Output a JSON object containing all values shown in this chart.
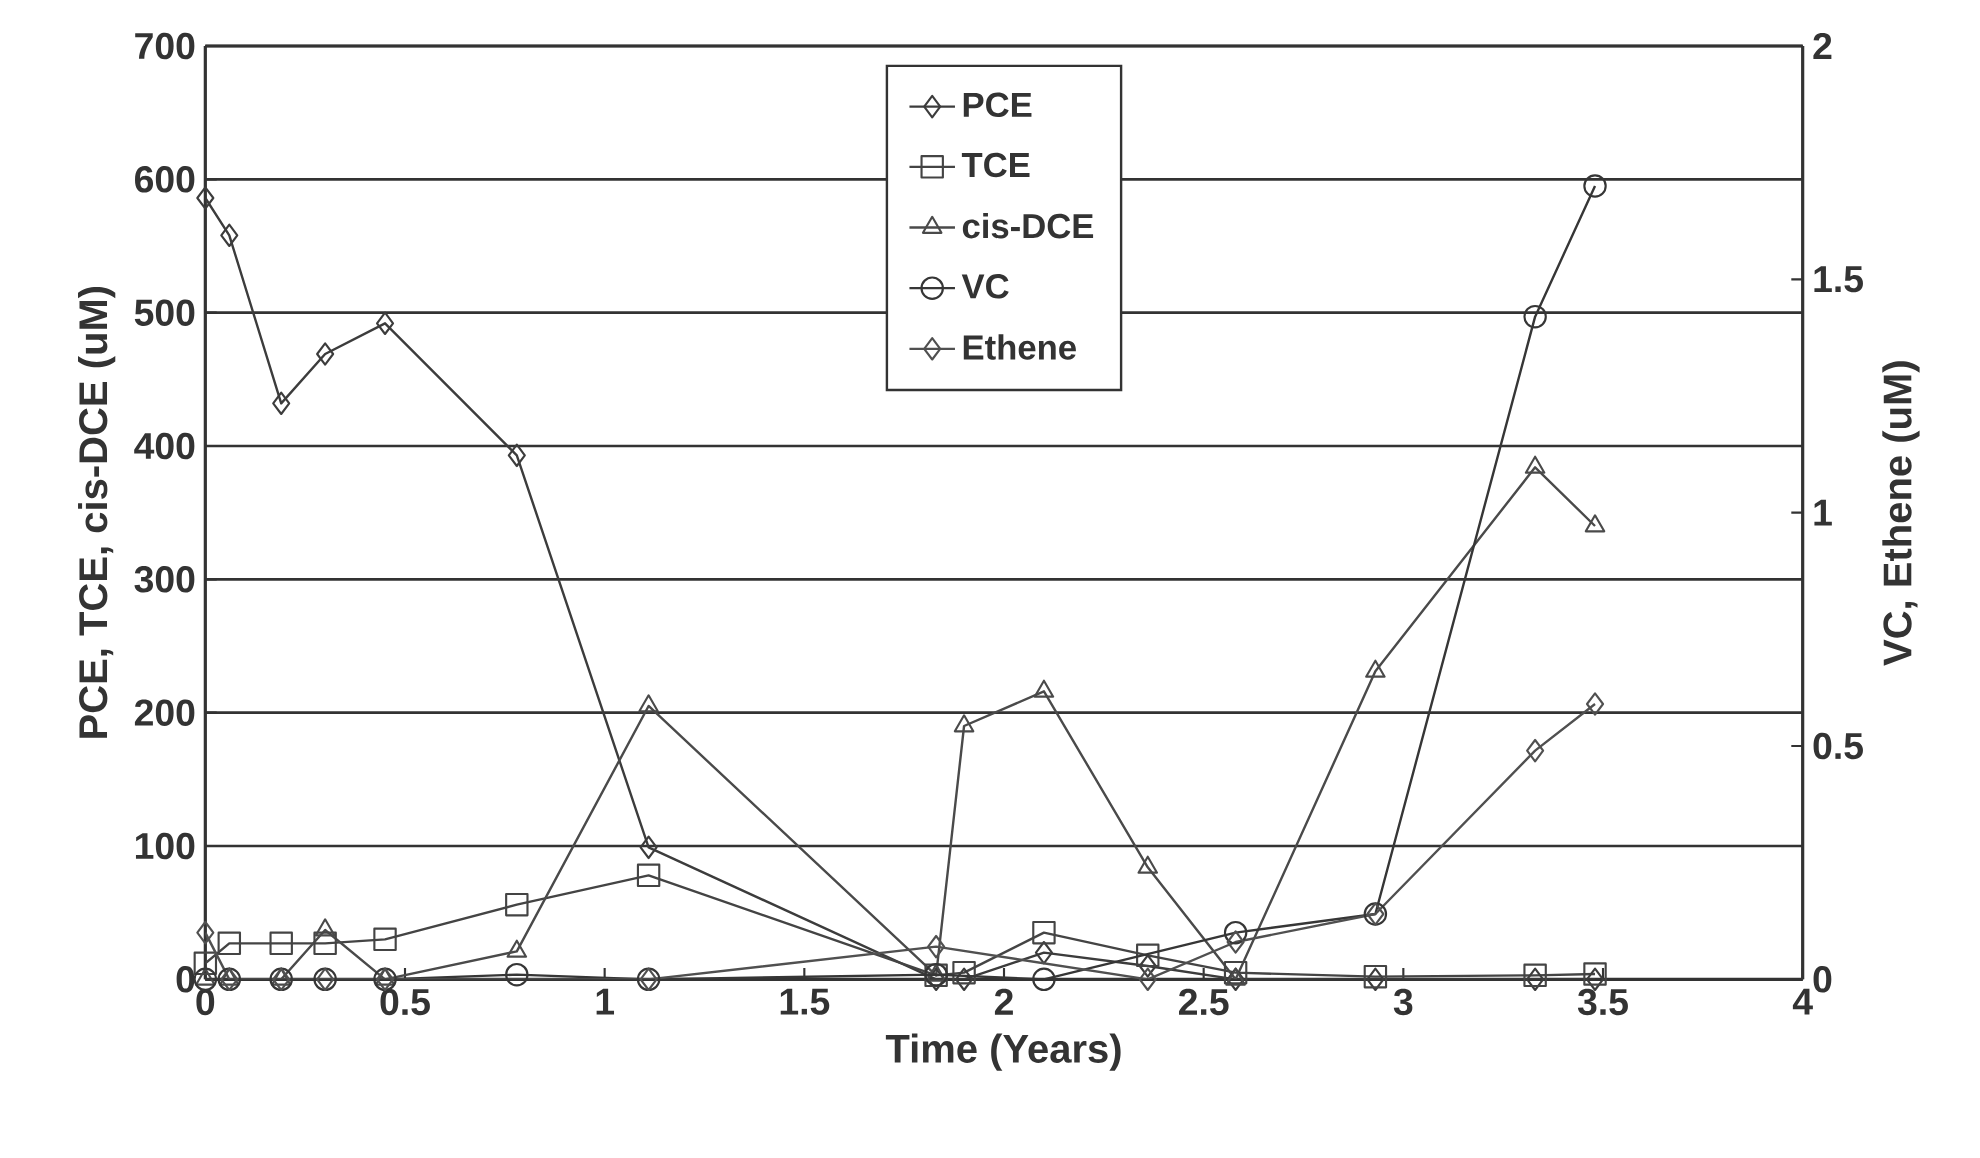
{
  "chart_data": {
    "type": "line",
    "xlabel": "Time (Years)",
    "ylabel": "PCE, TCE, cis-DCE (uM)",
    "y2label": "VC, Ethene (uM)",
    "xlim": [
      0,
      4
    ],
    "xticks": [
      0,
      0.5,
      1,
      1.5,
      2,
      2.5,
      3,
      3.5,
      4
    ],
    "ylim": [
      0,
      700
    ],
    "yticks": [
      0,
      100,
      200,
      300,
      400,
      500,
      600,
      700
    ],
    "y2lim": [
      0,
      2
    ],
    "y2ticks": [
      0,
      0.5,
      1,
      1.5,
      2
    ],
    "grid": "y",
    "legend": "top",
    "line_style": "solid",
    "series": [
      {
        "name": "PCE",
        "color": "#3c3c3c",
        "marker": "diamond",
        "x": [
          0,
          0.06,
          0.19,
          0.3,
          0.45,
          0.78,
          1.11,
          1.83,
          1.9,
          2.1,
          2.36,
          2.58,
          2.93,
          3.33,
          3.48
        ],
        "values": [
          586,
          558,
          432,
          469,
          492,
          393,
          99,
          0,
          0,
          20,
          10,
          0,
          0,
          0,
          0
        ]
      },
      {
        "name": "TCE",
        "color": "#444444",
        "marker": "square",
        "x": [
          0,
          0.06,
          0.19,
          0.3,
          0.45,
          0.78,
          1.11,
          1.83,
          1.9,
          2.1,
          2.36,
          2.58,
          2.93,
          3.33,
          3.48
        ],
        "values": [
          12,
          27,
          27,
          27,
          30,
          56,
          78,
          3,
          5,
          35,
          18,
          5,
          2,
          3,
          4
        ]
      },
      {
        "name": "cis-DCE",
        "color": "#4a4a4a",
        "marker": "triangle",
        "x": [
          0,
          0.06,
          0.19,
          0.3,
          0.45,
          0.78,
          1.11,
          1.83,
          1.9,
          2.1,
          2.36,
          2.58,
          2.93,
          3.33,
          3.48
        ],
        "values": [
          0,
          0,
          0,
          37,
          0,
          21,
          205,
          3,
          190,
          216,
          84,
          0,
          231,
          384,
          340
        ]
      },
      {
        "name": "VC",
        "color": "#363636",
        "marker": "circle",
        "axis": "y2",
        "x": [
          0,
          0.06,
          0.19,
          0.3,
          0.45,
          0.78,
          1.11,
          1.83,
          2.1,
          2.58,
          2.93,
          3.33,
          3.48
        ],
        "values": [
          0,
          0,
          0,
          0,
          0,
          0.01,
          0,
          0.01,
          0,
          0.1,
          0.14,
          1.42,
          1.7
        ]
      },
      {
        "name": "Ethene",
        "color": "#505050",
        "marker": "diamond",
        "axis": "y2",
        "x": [
          0,
          0.06,
          0.19,
          0.3,
          0.45,
          1.11,
          1.83,
          2.36,
          2.58,
          2.93,
          3.33,
          3.48
        ],
        "values": [
          0.1,
          0,
          0,
          0,
          0,
          0,
          0.07,
          0,
          0.08,
          0.14,
          0.49,
          0.59
        ]
      }
    ]
  }
}
